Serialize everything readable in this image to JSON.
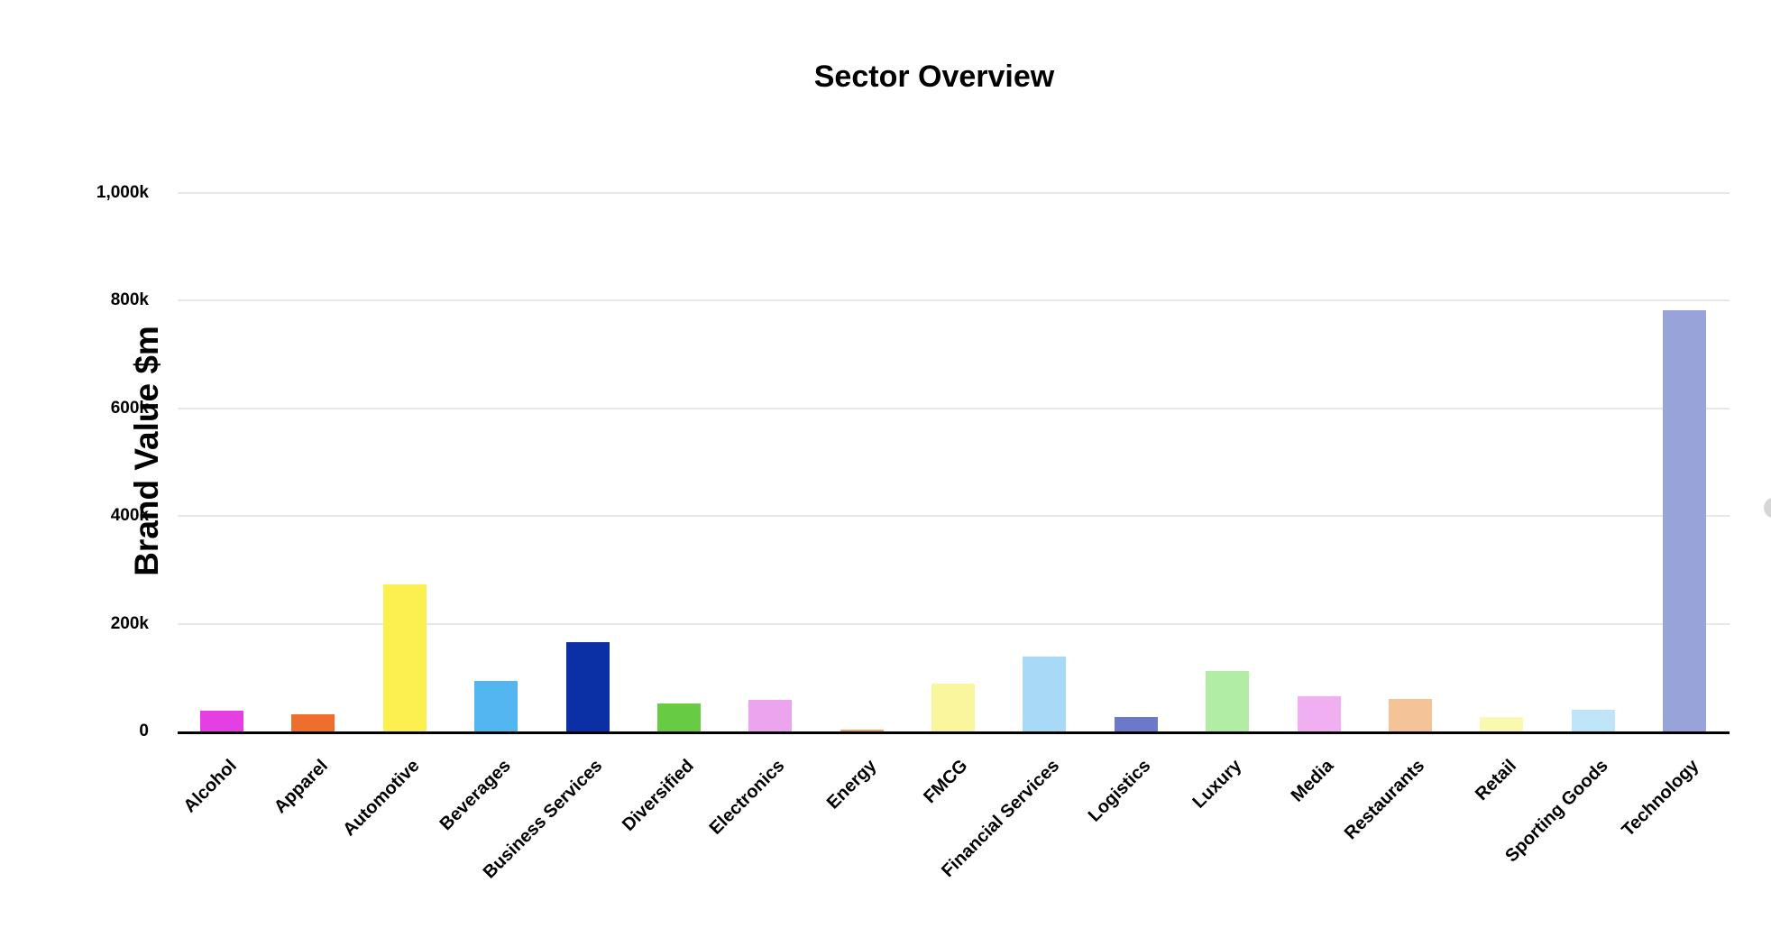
{
  "page": {
    "background_color": "#ffffff",
    "text_color": "#000000",
    "gridline_color": "#e7e7e7",
    "axis_line_color": "#000000"
  },
  "chart_data": {
    "type": "bar",
    "title": "Sector Overview",
    "xlabel": "",
    "ylabel": "Brand Value $m",
    "legend": "none",
    "grid": "horizontal",
    "ylim": [
      0,
      1000000
    ],
    "yticks": [
      {
        "value": 0,
        "label": "0"
      },
      {
        "value": 200000,
        "label": "200k"
      },
      {
        "value": 400000,
        "label": "400k"
      },
      {
        "value": 600000,
        "label": "600k"
      },
      {
        "value": 800000,
        "label": "800k"
      },
      {
        "value": 1000000,
        "label": "1,000k"
      }
    ],
    "categories": [
      "Alcohol",
      "Apparel",
      "Automotive",
      "Beverages",
      "Business Services",
      "Diversified",
      "Electronics",
      "Energy",
      "FMCG",
      "Financial Services",
      "Logistics",
      "Luxury",
      "Media",
      "Restaurants",
      "Retail",
      "Sporting Goods",
      "Technology"
    ],
    "values": [
      38000,
      31000,
      273000,
      93000,
      166000,
      52000,
      59000,
      4000,
      89000,
      139000,
      27000,
      112000,
      65000,
      60000,
      26000,
      40000,
      782000
    ],
    "bar_colors": [
      "#e33fe3",
      "#ee6e2d",
      "#fcf051",
      "#54b6f1",
      "#0b2fa5",
      "#67cc43",
      "#eda4ee",
      "#e7a465",
      "#f9f69e",
      "#a8daf8",
      "#6b79c8",
      "#b2eda6",
      "#efaff1",
      "#f4c397",
      "#fbf9b0",
      "#bfe5f9",
      "#98a3d9"
    ]
  },
  "decorations": {
    "edge_scroll_thumb_color": "#d6d6d6"
  }
}
